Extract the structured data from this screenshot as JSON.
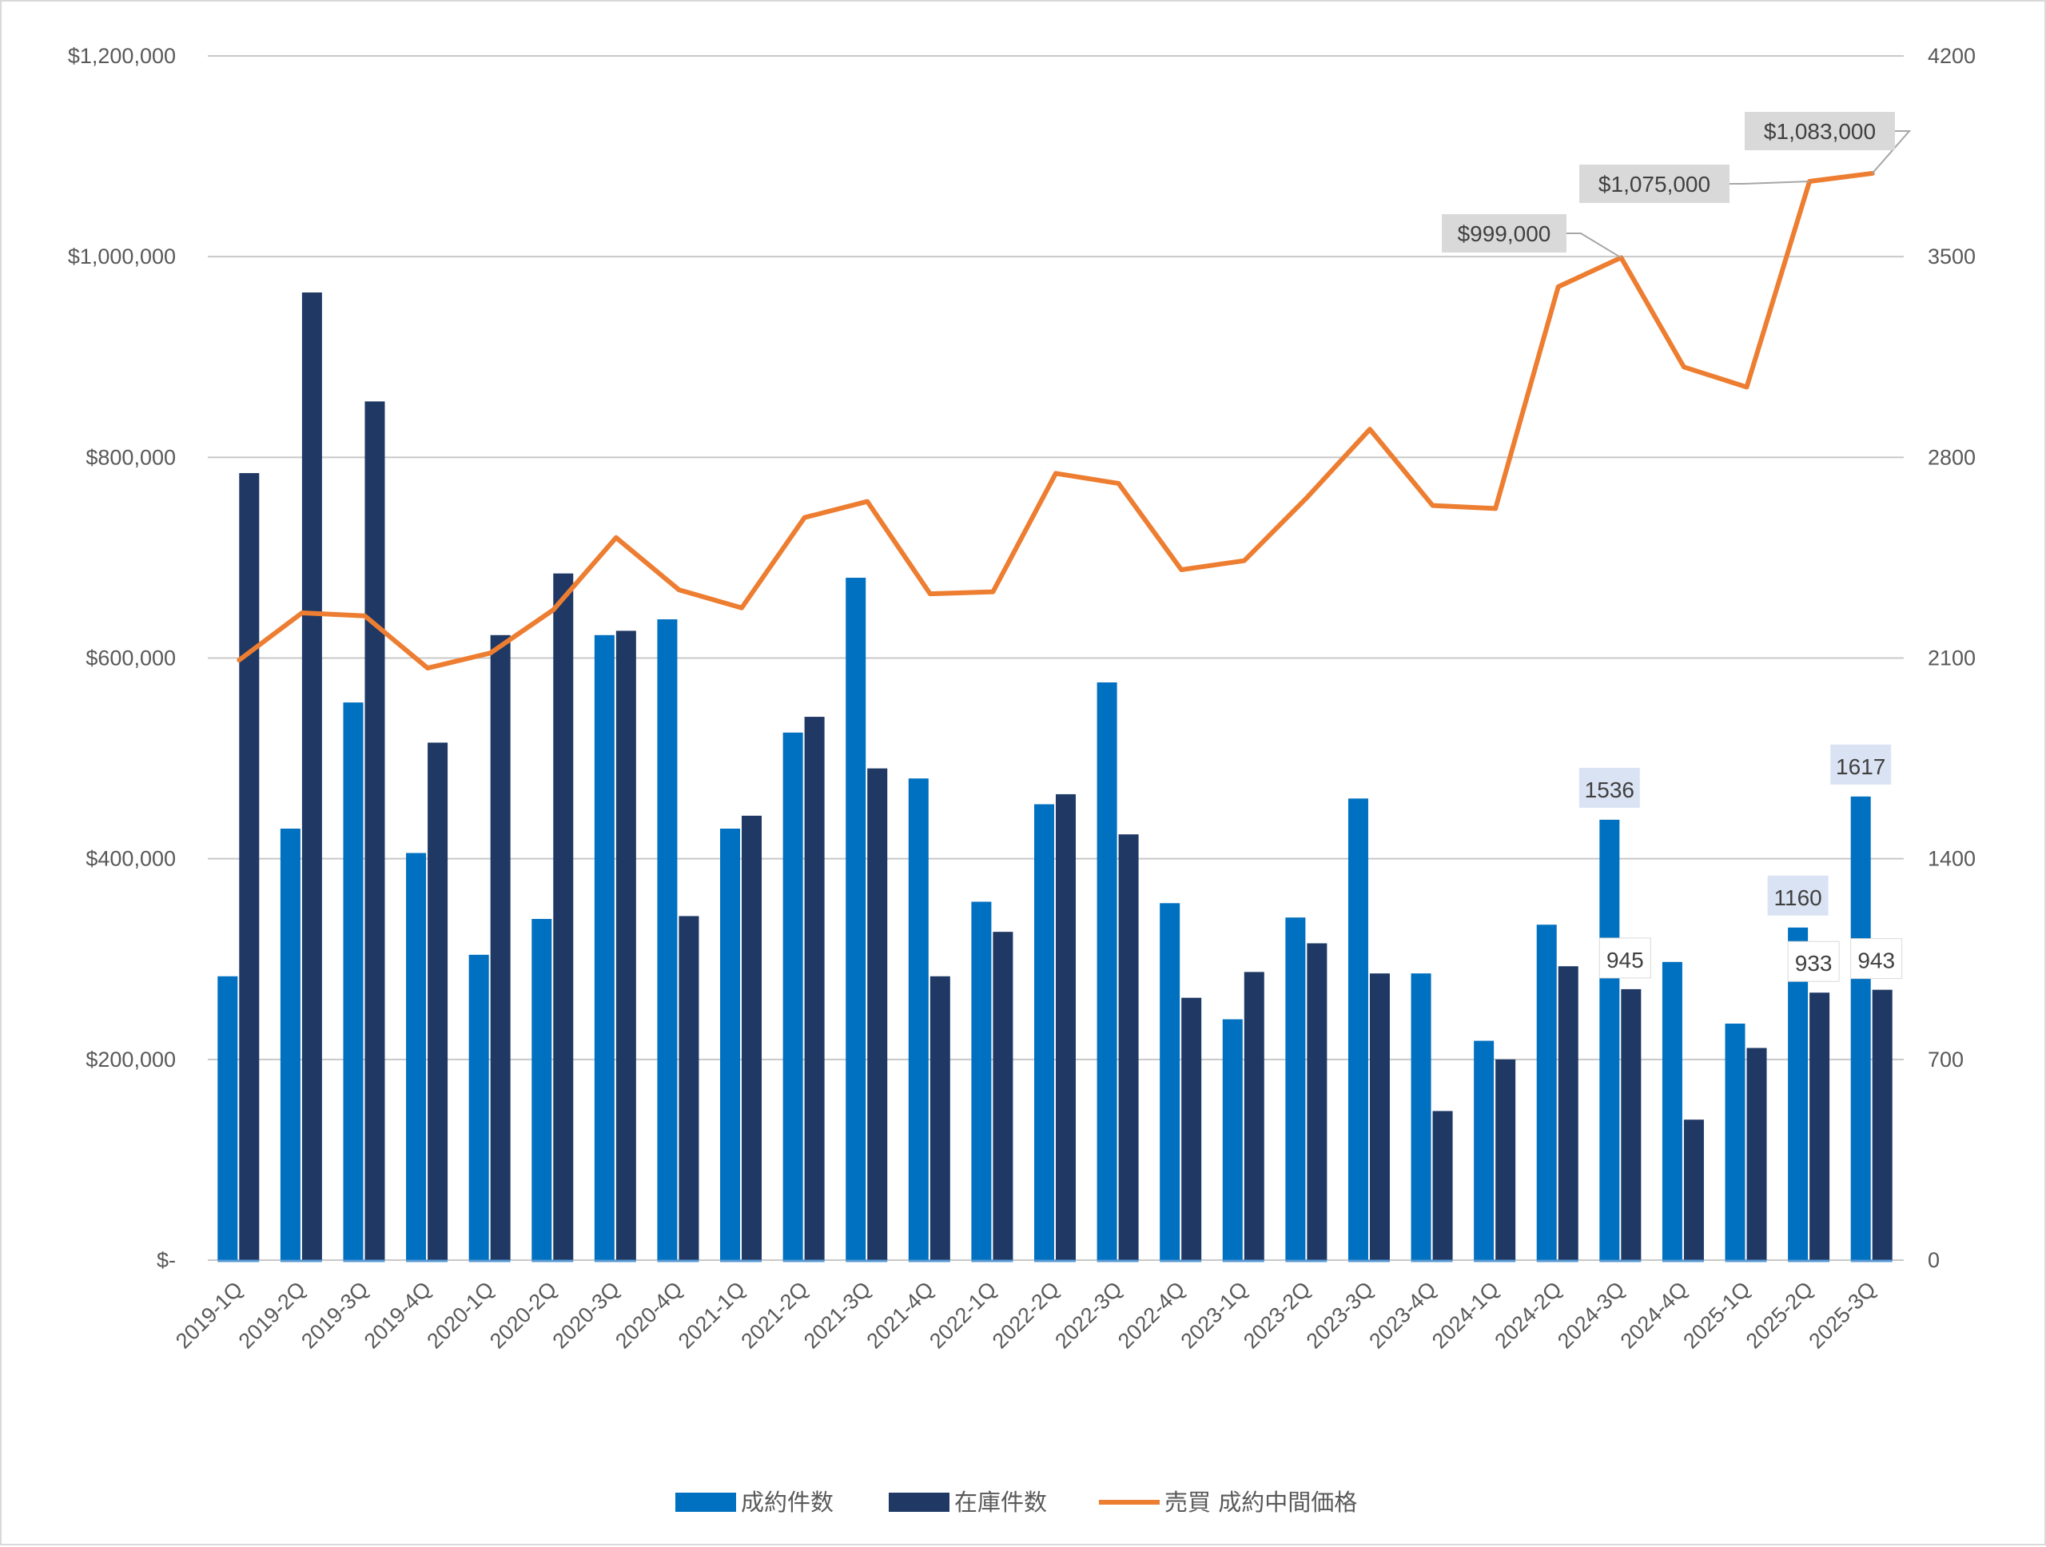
{
  "chart_data": {
    "type": "bar",
    "categories": [
      "2019-1Q",
      "2019-2Q",
      "2019-3Q",
      "2019-4Q",
      "2020-1Q",
      "2020-2Q",
      "2020-3Q",
      "2020-4Q",
      "2021-1Q",
      "2021-2Q",
      "2021-3Q",
      "2021-4Q",
      "2022-1Q",
      "2022-2Q",
      "2022-3Q",
      "2022-4Q",
      "2023-1Q",
      "2023-2Q",
      "2023-3Q",
      "2023-4Q",
      "2024-1Q",
      "2024-2Q",
      "2024-3Q",
      "2024-4Q",
      "2025-1Q",
      "2025-2Q",
      "2025-3Q"
    ],
    "series": [
      {
        "name": "成約件数",
        "type": "bar",
        "axis": "right",
        "color": "#0070c0",
        "values": [
          990,
          1505,
          1945,
          1420,
          1065,
          1190,
          2180,
          2235,
          1505,
          1840,
          2380,
          1680,
          1250,
          1590,
          2015,
          1245,
          840,
          1195,
          1610,
          1000,
          765,
          1170,
          1536,
          1040,
          825,
          1160,
          1617
        ]
      },
      {
        "name": "在庫件数",
        "type": "bar",
        "axis": "right",
        "color": "#1f3864",
        "values": [
          2745,
          3375,
          2995,
          1805,
          2180,
          2395,
          2195,
          1200,
          1550,
          1895,
          1715,
          990,
          1145,
          1625,
          1485,
          915,
          1005,
          1105,
          1000,
          520,
          700,
          1025,
          945,
          490,
          740,
          933,
          943
        ]
      },
      {
        "name": "売買 成約中間価格",
        "type": "line",
        "axis": "left",
        "color": "#ed7d31",
        "values": [
          598000,
          645000,
          642000,
          590000,
          605000,
          648000,
          720000,
          668000,
          650000,
          740000,
          756000,
          664000,
          666000,
          784000,
          774000,
          688000,
          697000,
          760000,
          828000,
          752000,
          749000,
          970000,
          999000,
          890000,
          870000,
          1075000,
          1083000
        ]
      }
    ],
    "y_left": {
      "ylim": [
        0,
        1200000
      ],
      "ticks": [
        "$-",
        "$200,000",
        "$400,000",
        "$600,000",
        "$800,000",
        "$1,000,000",
        "$1,200,000"
      ]
    },
    "y_right": {
      "ylim": [
        0,
        4200
      ],
      "ticks": [
        "0",
        "700",
        "1400",
        "2100",
        "2800",
        "3500",
        "4200"
      ]
    },
    "grid": true,
    "legend_position": "bottom",
    "annotations": {
      "price_callouts": [
        {
          "index": 22,
          "text": "$999,000"
        },
        {
          "index": 25,
          "text": "$1,075,000"
        },
        {
          "index": 26,
          "text": "$1,083,000"
        }
      ],
      "sales_labels": [
        {
          "index": 22,
          "text": "1536"
        },
        {
          "index": 25,
          "text": "1160"
        },
        {
          "index": 26,
          "text": "1617"
        }
      ],
      "inventory_labels": [
        {
          "index": 22,
          "text": "945"
        },
        {
          "index": 25,
          "text": "933"
        },
        {
          "index": 26,
          "text": "943"
        }
      ]
    },
    "colors": {
      "grid": "#c8c8c8",
      "axis_text": "#595959",
      "callout_box": "#d9d9d9",
      "label_box": "#dae3f3"
    }
  }
}
